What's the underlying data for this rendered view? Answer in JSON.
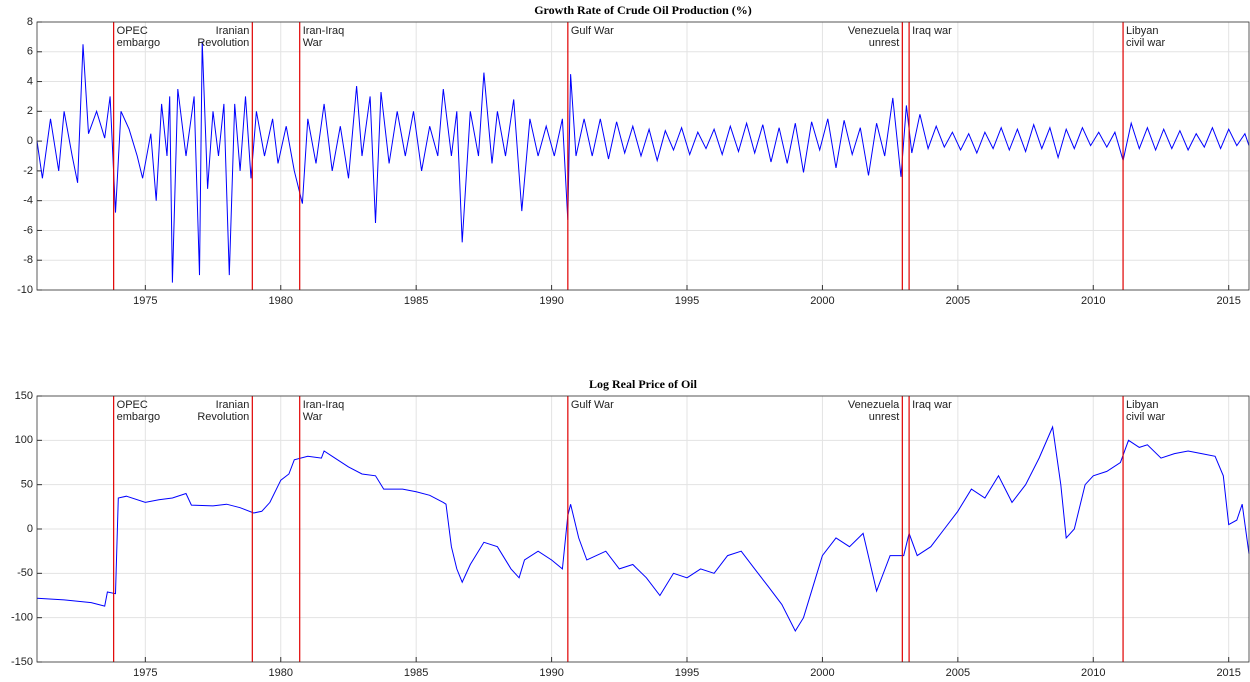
{
  "chart_data": [
    {
      "type": "line",
      "title": "Growth Rate of Crude Oil Production (%)",
      "color": "#0000ff",
      "event_color": "#e00000",
      "grid": true,
      "xlim": [
        1971,
        2015.75
      ],
      "xticks": [
        1975,
        1980,
        1985,
        1990,
        1995,
        2000,
        2005,
        2010,
        2015
      ],
      "ylim": [
        -10,
        8
      ],
      "yticks": [
        8,
        6,
        4,
        2,
        0,
        -2,
        -4,
        -6,
        -8,
        -10
      ],
      "events": [
        {
          "x": 1973.83,
          "label": [
            "OPEC",
            "embargo"
          ],
          "align": "left"
        },
        {
          "x": 1978.95,
          "label": [
            "Iranian",
            "Revolution"
          ],
          "align": "right"
        },
        {
          "x": 1980.7,
          "label": [
            "Iran-Iraq",
            "War"
          ],
          "align": "left"
        },
        {
          "x": 1990.6,
          "label": [
            "Gulf War"
          ],
          "align": "left"
        },
        {
          "x": 2002.95,
          "label": [
            "Venezuela",
            "unrest"
          ],
          "align": "right"
        },
        {
          "x": 2003.2,
          "label": [
            "Iraq war"
          ],
          "align": "left"
        },
        {
          "x": 2011.1,
          "label": [
            "Libyan",
            "civil war"
          ],
          "align": "left"
        }
      ],
      "x": [
        1971.0,
        1971.2,
        1971.5,
        1971.8,
        1972.0,
        1972.3,
        1972.5,
        1972.7,
        1972.9,
        1973.2,
        1973.5,
        1973.7,
        1973.9,
        1974.1,
        1974.4,
        1974.7,
        1974.9,
        1975.2,
        1975.4,
        1975.6,
        1975.8,
        1975.9,
        1976.0,
        1976.2,
        1976.5,
        1976.8,
        1977.0,
        1977.1,
        1977.3,
        1977.5,
        1977.7,
        1977.9,
        1978.1,
        1978.3,
        1978.5,
        1978.7,
        1978.9,
        1979.1,
        1979.4,
        1979.7,
        1979.9,
        1980.2,
        1980.5,
        1980.8,
        1981.0,
        1981.3,
        1981.6,
        1981.9,
        1982.2,
        1982.5,
        1982.8,
        1983.0,
        1983.3,
        1983.5,
        1983.7,
        1984.0,
        1984.3,
        1984.6,
        1984.9,
        1985.2,
        1985.5,
        1985.8,
        1986.0,
        1986.3,
        1986.5,
        1986.7,
        1987.0,
        1987.3,
        1987.5,
        1987.8,
        1988.0,
        1988.3,
        1988.6,
        1988.9,
        1989.2,
        1989.5,
        1989.8,
        1990.1,
        1990.4,
        1990.6,
        1990.7,
        1990.9,
        1991.2,
        1991.5,
        1991.8,
        1992.1,
        1992.4,
        1992.7,
        1993.0,
        1993.3,
        1993.6,
        1993.9,
        1994.2,
        1994.5,
        1994.8,
        1995.1,
        1995.4,
        1995.7,
        1996.0,
        1996.3,
        1996.6,
        1996.9,
        1997.2,
        1997.5,
        1997.8,
        1998.1,
        1998.4,
        1998.7,
        1999.0,
        1999.3,
        1999.6,
        1999.9,
        2000.2,
        2000.5,
        2000.8,
        2001.1,
        2001.4,
        2001.7,
        2002.0,
        2002.3,
        2002.6,
        2002.9,
        2003.1,
        2003.3,
        2003.6,
        2003.9,
        2004.2,
        2004.5,
        2004.8,
        2005.1,
        2005.4,
        2005.7,
        2006.0,
        2006.3,
        2006.6,
        2006.9,
        2007.2,
        2007.5,
        2007.8,
        2008.1,
        2008.4,
        2008.7,
        2009.0,
        2009.3,
        2009.6,
        2009.9,
        2010.2,
        2010.5,
        2010.8,
        2011.1,
        2011.4,
        2011.7,
        2012.0,
        2012.3,
        2012.6,
        2012.9,
        2013.2,
        2013.5,
        2013.8,
        2014.1,
        2014.4,
        2014.7,
        2015.0,
        2015.3,
        2015.6,
        2015.75
      ],
      "values": [
        0,
        -2.5,
        1.5,
        -2,
        2,
        -1,
        -2.8,
        6.5,
        0.5,
        2,
        0.2,
        3,
        -4.8,
        2,
        0.8,
        -1,
        -2.5,
        0.5,
        -4,
        2.5,
        -1,
        3,
        -9.5,
        3.5,
        -1,
        3,
        -9,
        6.7,
        -3.2,
        2,
        -1,
        2.5,
        -9,
        2.5,
        -2,
        3,
        -2.5,
        2,
        -1,
        1.5,
        -1.5,
        1,
        -2,
        -4.2,
        1.5,
        -1.5,
        2.5,
        -2,
        1,
        -2.5,
        3.7,
        -1,
        3,
        -5.5,
        3.3,
        -1.5,
        2,
        -1,
        2,
        -2,
        1,
        -1,
        3.5,
        -1,
        2,
        -6.8,
        2,
        -1,
        4.6,
        -1.5,
        2,
        -1,
        2.8,
        -4.7,
        1.5,
        -1,
        1,
        -1,
        1.5,
        -5.3,
        4.5,
        -1,
        1.5,
        -1,
        1.5,
        -1.2,
        1.3,
        -0.8,
        1,
        -1,
        0.8,
        -1.3,
        0.7,
        -0.6,
        0.9,
        -0.9,
        0.6,
        -0.5,
        0.8,
        -0.9,
        1,
        -0.7,
        1.2,
        -0.8,
        1.1,
        -1.4,
        0.9,
        -1.5,
        1.2,
        -2.1,
        1.3,
        -0.6,
        1.5,
        -1.8,
        1.4,
        -0.9,
        0.9,
        -2.3,
        1.2,
        -1,
        2.9,
        -2.4,
        2.4,
        -0.8,
        1.8,
        -0.5,
        1,
        -0.4,
        0.6,
        -0.6,
        0.5,
        -0.8,
        0.6,
        -0.5,
        0.9,
        -0.6,
        0.8,
        -0.7,
        1.1,
        -0.5,
        0.9,
        -1.1,
        0.8,
        -0.5,
        0.9,
        -0.3,
        0.6,
        -0.4,
        0.6,
        -1.3,
        1.2,
        -0.5,
        0.9,
        -0.6,
        0.8,
        -0.5,
        0.7,
        -0.6,
        0.5,
        -0.4,
        0.9,
        -0.5,
        0.8,
        -0.3,
        0.5,
        -0.3
      ]
    },
    {
      "type": "line",
      "title": "Log Real Price of Oil",
      "color": "#0000ff",
      "event_color": "#e00000",
      "grid": true,
      "xlim": [
        1971,
        2015.75
      ],
      "xticks": [
        1975,
        1980,
        1985,
        1990,
        1995,
        2000,
        2005,
        2010,
        2015
      ],
      "ylim": [
        -150,
        150
      ],
      "yticks": [
        150,
        100,
        50,
        0,
        -50,
        -100,
        -150
      ],
      "events": [
        {
          "x": 1973.83,
          "label": [
            "OPEC",
            "embargo"
          ],
          "align": "left"
        },
        {
          "x": 1978.95,
          "label": [
            "Iranian",
            "Revolution"
          ],
          "align": "right"
        },
        {
          "x": 1980.7,
          "label": [
            "Iran-Iraq",
            "War"
          ],
          "align": "left"
        },
        {
          "x": 1990.6,
          "label": [
            "Gulf War"
          ],
          "align": "left"
        },
        {
          "x": 2002.95,
          "label": [
            "Venezuela",
            "unrest"
          ],
          "align": "right"
        },
        {
          "x": 2003.2,
          "label": [
            "Iraq war"
          ],
          "align": "left"
        },
        {
          "x": 2011.1,
          "label": [
            "Libyan",
            "civil war"
          ],
          "align": "left"
        }
      ],
      "x": [
        1971.0,
        1972.0,
        1973.0,
        1973.5,
        1973.6,
        1973.9,
        1974.0,
        1974.3,
        1975.0,
        1975.5,
        1976.0,
        1976.5,
        1976.7,
        1977.5,
        1978.0,
        1978.5,
        1979.0,
        1979.3,
        1979.6,
        1980.0,
        1980.3,
        1980.5,
        1981.0,
        1981.5,
        1981.6,
        1982.0,
        1982.5,
        1983.0,
        1983.5,
        1983.8,
        1984.5,
        1985.0,
        1985.5,
        1986.0,
        1986.1,
        1986.3,
        1986.5,
        1986.7,
        1987.0,
        1987.5,
        1988.0,
        1988.5,
        1988.8,
        1989.0,
        1989.5,
        1990.0,
        1990.4,
        1990.6,
        1990.7,
        1991.0,
        1991.3,
        1992.0,
        1992.5,
        1993.0,
        1993.5,
        1994.0,
        1994.5,
        1995.0,
        1995.5,
        1996.0,
        1996.5,
        1997.0,
        1997.5,
        1998.0,
        1998.5,
        1999.0,
        1999.3,
        1999.7,
        2000.0,
        2000.5,
        2001.0,
        2001.5,
        2002.0,
        2002.5,
        2003.0,
        2003.2,
        2003.5,
        2004.0,
        2004.5,
        2005.0,
        2005.5,
        2006.0,
        2006.5,
        2007.0,
        2007.5,
        2008.0,
        2008.5,
        2008.8,
        2009.0,
        2009.3,
        2009.7,
        2010.0,
        2010.5,
        2011.0,
        2011.3,
        2011.7,
        2012.0,
        2012.5,
        2013.0,
        2013.5,
        2014.0,
        2014.5,
        2014.8,
        2015.0,
        2015.3,
        2015.5,
        2015.75
      ],
      "values": [
        -78,
        -80,
        -83,
        -87,
        -71,
        -73,
        35,
        37,
        30,
        33,
        35,
        40,
        27,
        26,
        28,
        24,
        18,
        20,
        30,
        55,
        62,
        78,
        82,
        80,
        88,
        80,
        70,
        62,
        60,
        45,
        45,
        42,
        38,
        30,
        28,
        -20,
        -45,
        -60,
        -40,
        -15,
        -20,
        -45,
        -55,
        -35,
        -25,
        -35,
        -45,
        15,
        28,
        -10,
        -35,
        -25,
        -45,
        -40,
        -55,
        -75,
        -50,
        -55,
        -45,
        -50,
        -30,
        -25,
        -45,
        -65,
        -85,
        -115,
        -100,
        -60,
        -30,
        -10,
        -20,
        -5,
        -70,
        -30,
        -30,
        -5,
        -30,
        -20,
        0,
        20,
        45,
        35,
        60,
        30,
        50,
        80,
        115,
        50,
        -10,
        0,
        50,
        60,
        65,
        75,
        100,
        92,
        95,
        80,
        85,
        88,
        85,
        82,
        60,
        5,
        10,
        28,
        -28
      ]
    }
  ]
}
